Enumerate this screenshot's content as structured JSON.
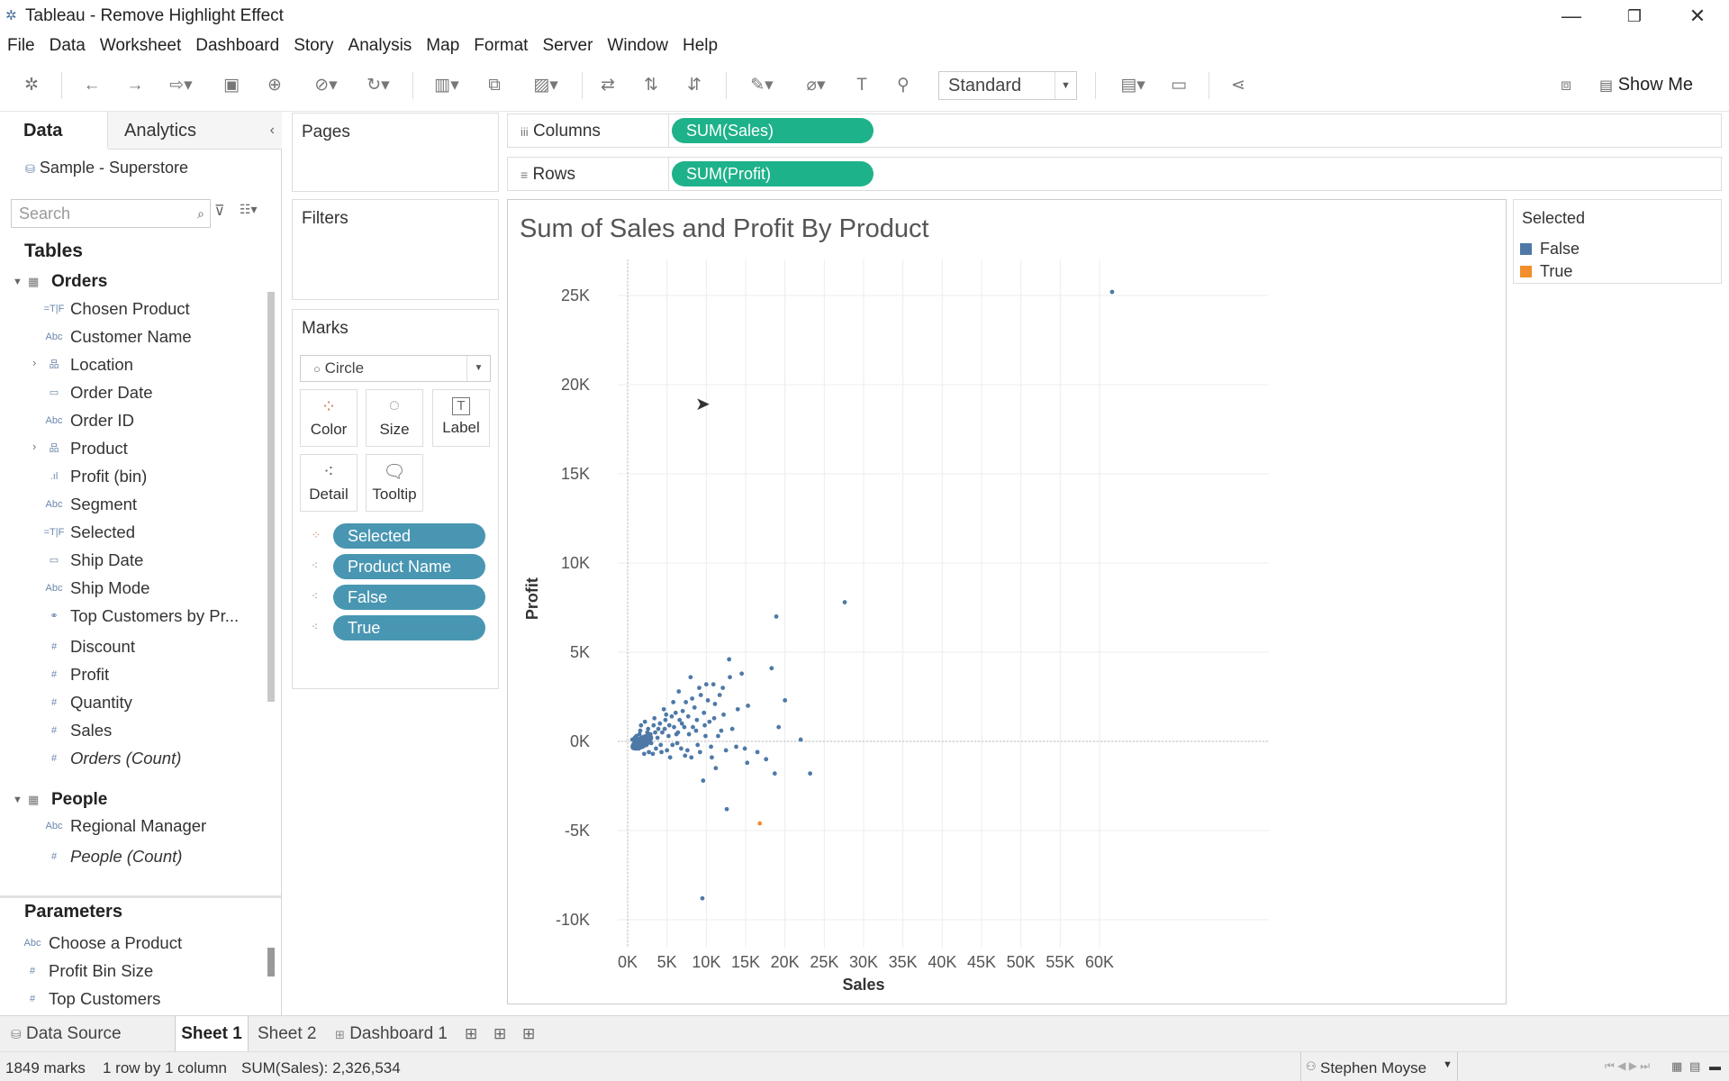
{
  "window": {
    "title": "Tableau - Remove Highlight Effect"
  },
  "menu": [
    "File",
    "Data",
    "Worksheet",
    "Dashboard",
    "Story",
    "Analysis",
    "Map",
    "Format",
    "Server",
    "Window",
    "Help"
  ],
  "toolbar": {
    "fit_select": "Standard",
    "show_me": "Show Me"
  },
  "datapane": {
    "tab_data": "Data",
    "tab_analytics": "Analytics",
    "datasource": "Sample - Superstore",
    "search_placeholder": "Search",
    "tables_heading": "Tables",
    "orders_heading": "Orders",
    "orders_fields": [
      {
        "label": "Chosen Product",
        "icon": "=T|F",
        "expand": false,
        "italic": false
      },
      {
        "label": "Customer Name",
        "icon": "Abc",
        "expand": false,
        "italic": false
      },
      {
        "label": "Location",
        "icon": "hierarchy",
        "expand": true,
        "italic": false
      },
      {
        "label": "Order Date",
        "icon": "calendar",
        "expand": false,
        "italic": false
      },
      {
        "label": "Order ID",
        "icon": "Abc",
        "expand": false,
        "italic": false
      },
      {
        "label": "Product",
        "icon": "hierarchy",
        "expand": true,
        "italic": false
      },
      {
        "label": "Profit (bin)",
        "icon": "bin",
        "expand": false,
        "italic": false
      },
      {
        "label": "Segment",
        "icon": "Abc",
        "expand": false,
        "italic": false
      },
      {
        "label": "Selected",
        "icon": "=T|F",
        "expand": false,
        "italic": false
      },
      {
        "label": "Ship Date",
        "icon": "calendar",
        "expand": false,
        "italic": false
      },
      {
        "label": "Ship Mode",
        "icon": "Abc",
        "expand": false,
        "italic": false
      },
      {
        "label": "Top Customers by Pr...",
        "icon": "set",
        "expand": false,
        "italic": false
      },
      {
        "label": "Discount",
        "icon": "#",
        "expand": false,
        "italic": false
      },
      {
        "label": "Profit",
        "icon": "#",
        "expand": false,
        "italic": false
      },
      {
        "label": "Quantity",
        "icon": "#",
        "expand": false,
        "italic": false
      },
      {
        "label": "Sales",
        "icon": "#",
        "expand": false,
        "italic": false
      },
      {
        "label": "Orders (Count)",
        "icon": "#",
        "expand": false,
        "italic": true
      }
    ],
    "people_heading": "People",
    "people_fields": [
      {
        "label": "Regional Manager",
        "icon": "Abc",
        "italic": false
      },
      {
        "label": "People (Count)",
        "icon": "#",
        "italic": true
      }
    ],
    "parameters_heading": "Parameters",
    "parameters": [
      {
        "label": "Choose a Product",
        "icon": "Abc"
      },
      {
        "label": "Profit Bin Size",
        "icon": "#"
      },
      {
        "label": "Top Customers",
        "icon": "#"
      }
    ]
  },
  "pages": {
    "title": "Pages"
  },
  "filters": {
    "title": "Filters"
  },
  "marks": {
    "title": "Marks",
    "mark_type": "Circle",
    "buttons": [
      "Color",
      "Size",
      "Label",
      "Detail",
      "Tooltip"
    ],
    "pills": [
      "Selected",
      "Product Name",
      "False",
      "True"
    ]
  },
  "shelves": {
    "columns_label": "Columns",
    "columns_pill": "SUM(Sales)",
    "rows_label": "Rows",
    "rows_pill": "SUM(Profit)"
  },
  "legend": {
    "title": "Selected",
    "items": [
      {
        "label": "False",
        "color": "#4e79a7"
      },
      {
        "label": "True",
        "color": "#f28e2b"
      }
    ]
  },
  "chart_data": {
    "type": "scatter",
    "title": "Sum of Sales and Profit By Product",
    "xlabel": "Sales",
    "ylabel": "Profit",
    "xlim": [
      -1000,
      65000
    ],
    "ylim": [
      -10500,
      27500
    ],
    "x_ticks": [
      "0K",
      "5K",
      "10K",
      "15K",
      "20K",
      "25K",
      "30K",
      "35K",
      "40K",
      "45K",
      "50K",
      "55K",
      "60K"
    ],
    "y_ticks": [
      "25K",
      "20K",
      "15K",
      "10K",
      "5K",
      "0K",
      "-5K",
      "-10K"
    ],
    "x_tick_values": [
      0,
      5000,
      10000,
      15000,
      20000,
      25000,
      30000,
      35000,
      40000,
      45000,
      50000,
      55000,
      60000
    ],
    "y_tick_values": [
      25000,
      20000,
      15000,
      10000,
      5000,
      0,
      -5000,
      -10000
    ],
    "grid": true,
    "series": [
      {
        "name": "False",
        "color": "#4e79a7",
        "points": [
          [
            61600,
            25200
          ],
          [
            27600,
            7800
          ],
          [
            18900,
            7000
          ],
          [
            12900,
            4600
          ],
          [
            18300,
            4100
          ],
          [
            14500,
            3800
          ],
          [
            13000,
            3600
          ],
          [
            20000,
            2300
          ],
          [
            19200,
            800
          ],
          [
            22000,
            100
          ],
          [
            23200,
            -1800
          ],
          [
            16500,
            -600
          ],
          [
            17600,
            -1000
          ],
          [
            18700,
            -1800
          ],
          [
            12600,
            -3800
          ],
          [
            9500,
            -8800
          ],
          [
            15200,
            -1200
          ],
          [
            13800,
            -300
          ],
          [
            11200,
            -1500
          ],
          [
            10000,
            3200
          ],
          [
            9100,
            3000
          ],
          [
            8000,
            3600
          ],
          [
            7400,
            2200
          ],
          [
            8800,
            1200
          ],
          [
            10700,
            -900
          ],
          [
            9600,
            -2200
          ],
          [
            14000,
            1800
          ],
          [
            15300,
            2000
          ],
          [
            11100,
            2100
          ],
          [
            12200,
            1500
          ],
          [
            6500,
            2800
          ],
          [
            7000,
            1700
          ],
          [
            8300,
            800
          ],
          [
            5600,
            1400
          ],
          [
            6200,
            400
          ],
          [
            7600,
            -500
          ],
          [
            8900,
            -200
          ],
          [
            9900,
            300
          ],
          [
            10400,
            1100
          ],
          [
            11900,
            600
          ],
          [
            4800,
            1200
          ],
          [
            5200,
            300
          ],
          [
            3900,
            700
          ],
          [
            4200,
            -200
          ],
          [
            3300,
            900
          ],
          [
            2800,
            200
          ],
          [
            3600,
            -400
          ],
          [
            2100,
            -700
          ],
          [
            6800,
            -400
          ],
          [
            5400,
            -900
          ],
          [
            4600,
            1800
          ],
          [
            5800,
            2200
          ],
          [
            6300,
            -100
          ],
          [
            7200,
            800
          ],
          [
            8500,
            1900
          ],
          [
            9300,
            2600
          ],
          [
            10900,
            3200
          ],
          [
            12100,
            3000
          ],
          [
            13300,
            700
          ],
          [
            14900,
            -400
          ],
          [
            1500,
            400
          ],
          [
            1900,
            -300
          ],
          [
            2500,
            500
          ],
          [
            2200,
            1100
          ],
          [
            3000,
            -100
          ],
          [
            1200,
            -100
          ],
          [
            900,
            200
          ],
          [
            1700,
            900
          ],
          [
            2700,
            -600
          ],
          [
            3400,
            1300
          ],
          [
            4400,
            500
          ],
          [
            5000,
            -500
          ],
          [
            5900,
            800
          ],
          [
            6600,
            1200
          ],
          [
            7800,
            400
          ],
          [
            8100,
            -900
          ],
          [
            9700,
            1600
          ],
          [
            10600,
            -300
          ],
          [
            11500,
            300
          ],
          [
            12500,
            -500
          ],
          [
            600,
            100
          ],
          [
            800,
            -200
          ],
          [
            1100,
            300
          ],
          [
            1400,
            -400
          ],
          [
            1600,
            600
          ],
          [
            2000,
            100
          ],
          [
            2400,
            -200
          ],
          [
            2600,
            700
          ],
          [
            2900,
            400
          ],
          [
            3200,
            -700
          ],
          [
            3500,
            500
          ],
          [
            3800,
            200
          ],
          [
            4100,
            1000
          ],
          [
            4300,
            -600
          ],
          [
            4700,
            700
          ],
          [
            4900,
            1500
          ],
          [
            5300,
            900
          ],
          [
            5700,
            -200
          ],
          [
            6100,
            1600
          ],
          [
            6400,
            500
          ],
          [
            6900,
            1000
          ],
          [
            7300,
            -800
          ],
          [
            7700,
            1400
          ],
          [
            8200,
            2400
          ],
          [
            8700,
            600
          ],
          [
            9200,
            -600
          ],
          [
            9800,
            900
          ],
          [
            10200,
            2300
          ],
          [
            11000,
            1300
          ],
          [
            11700,
            2600
          ]
        ]
      },
      {
        "name": "True",
        "color": "#f28e2b",
        "points": [
          [
            16800,
            -4600
          ]
        ]
      }
    ]
  },
  "sheets": {
    "data_source": "Data Source",
    "tabs": [
      "Sheet 1",
      "Sheet 2",
      "Dashboard 1"
    ]
  },
  "status": {
    "marks": "1849 marks",
    "grid": "1 row by 1 column",
    "sum": "SUM(Sales): 2,326,534",
    "user": "Stephen Moyse"
  }
}
